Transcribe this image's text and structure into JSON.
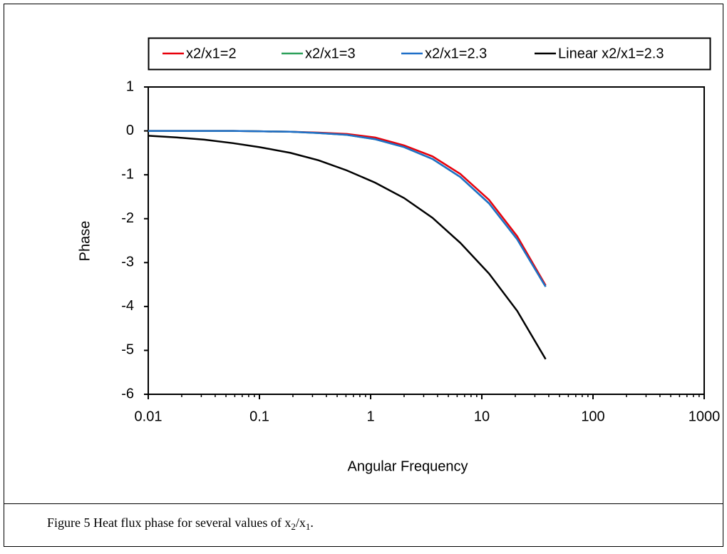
{
  "chart_data": {
    "type": "line",
    "xlabel": "Angular Frequency",
    "ylabel": "Phase",
    "x": [
      0.01,
      0.018,
      0.032,
      0.058,
      0.1,
      0.19,
      0.34,
      0.61,
      1.1,
      2,
      3.6,
      6.4,
      11.6,
      20.8,
      37.5
    ],
    "series": [
      {
        "name": "x2/x1=2",
        "color": "#e8000b",
        "values": [
          0,
          0,
          0,
          0,
          -0.01,
          -0.02,
          -0.04,
          -0.07,
          -0.15,
          -0.33,
          -0.58,
          -0.98,
          -1.57,
          -2.4,
          -3.52
        ]
      },
      {
        "name": "x2/x1=3",
        "color": "#2ca05a",
        "values": [
          0,
          0,
          0,
          0,
          -0.01,
          -0.02,
          -0.05,
          -0.09,
          -0.19,
          -0.37,
          -0.64,
          -1.05,
          -1.65,
          -2.47,
          -3.55
        ]
      },
      {
        "name": "x2/x1=2.3",
        "color": "#1f6fc8",
        "values": [
          0,
          0,
          0,
          0,
          -0.01,
          -0.02,
          -0.05,
          -0.09,
          -0.19,
          -0.37,
          -0.64,
          -1.05,
          -1.65,
          -2.47,
          -3.55
        ]
      },
      {
        "name": "Linear x2/x1=2.3",
        "color": "#000000",
        "values": [
          -0.11,
          -0.15,
          -0.2,
          -0.28,
          -0.37,
          -0.5,
          -0.67,
          -0.9,
          -1.18,
          -1.53,
          -1.98,
          -2.55,
          -3.25,
          -4.1,
          -5.2
        ]
      }
    ],
    "xscale": "log",
    "xlim": [
      0.01,
      1000
    ],
    "xticks": [
      0.01,
      0.1,
      1,
      10,
      100,
      1000
    ],
    "ylim": [
      -6,
      1
    ],
    "yticks": [
      -6,
      -5,
      -4,
      -3,
      -2,
      -1,
      0,
      1
    ],
    "grid": false,
    "legend": "top",
    "caption": [
      "Figure 5 Heat flux phase for several values of ",
      "x",
      "2",
      "/x",
      "1",
      "."
    ]
  }
}
